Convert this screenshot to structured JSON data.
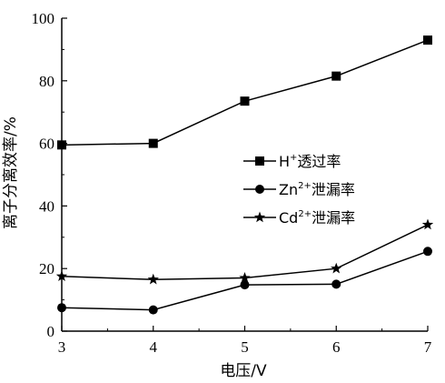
{
  "chart_data": {
    "type": "line",
    "x": [
      3,
      4,
      5,
      6,
      7
    ],
    "xlim": [
      3,
      7
    ],
    "ylim": [
      0,
      100
    ],
    "xticks": [
      3,
      4,
      5,
      6,
      7
    ],
    "yticks": [
      0,
      20,
      40,
      60,
      80,
      100
    ],
    "xlabel": "电压/V",
    "ylabel": "离子分离效率/%",
    "grid": false,
    "legend_position": "center-right",
    "series": [
      {
        "name": "H⁺透过率",
        "legend_base": "H",
        "legend_sup": "+",
        "legend_rest": "透过率",
        "marker": "square",
        "values": [
          59.5,
          60,
          73.5,
          81.5,
          93
        ]
      },
      {
        "name": "Zn²⁺泄漏率",
        "legend_base": "Zn",
        "legend_sup": "2+",
        "legend_rest": "泄漏率",
        "marker": "circle",
        "values": [
          7.5,
          6.8,
          14.8,
          15,
          25.5
        ]
      },
      {
        "name": "Cd²⁺泄漏率",
        "legend_base": "Cd",
        "legend_sup": "2+",
        "legend_rest": "泄漏率",
        "marker": "star",
        "values": [
          17.5,
          16.5,
          17,
          20,
          34
        ]
      }
    ],
    "line_color": "#000000"
  }
}
